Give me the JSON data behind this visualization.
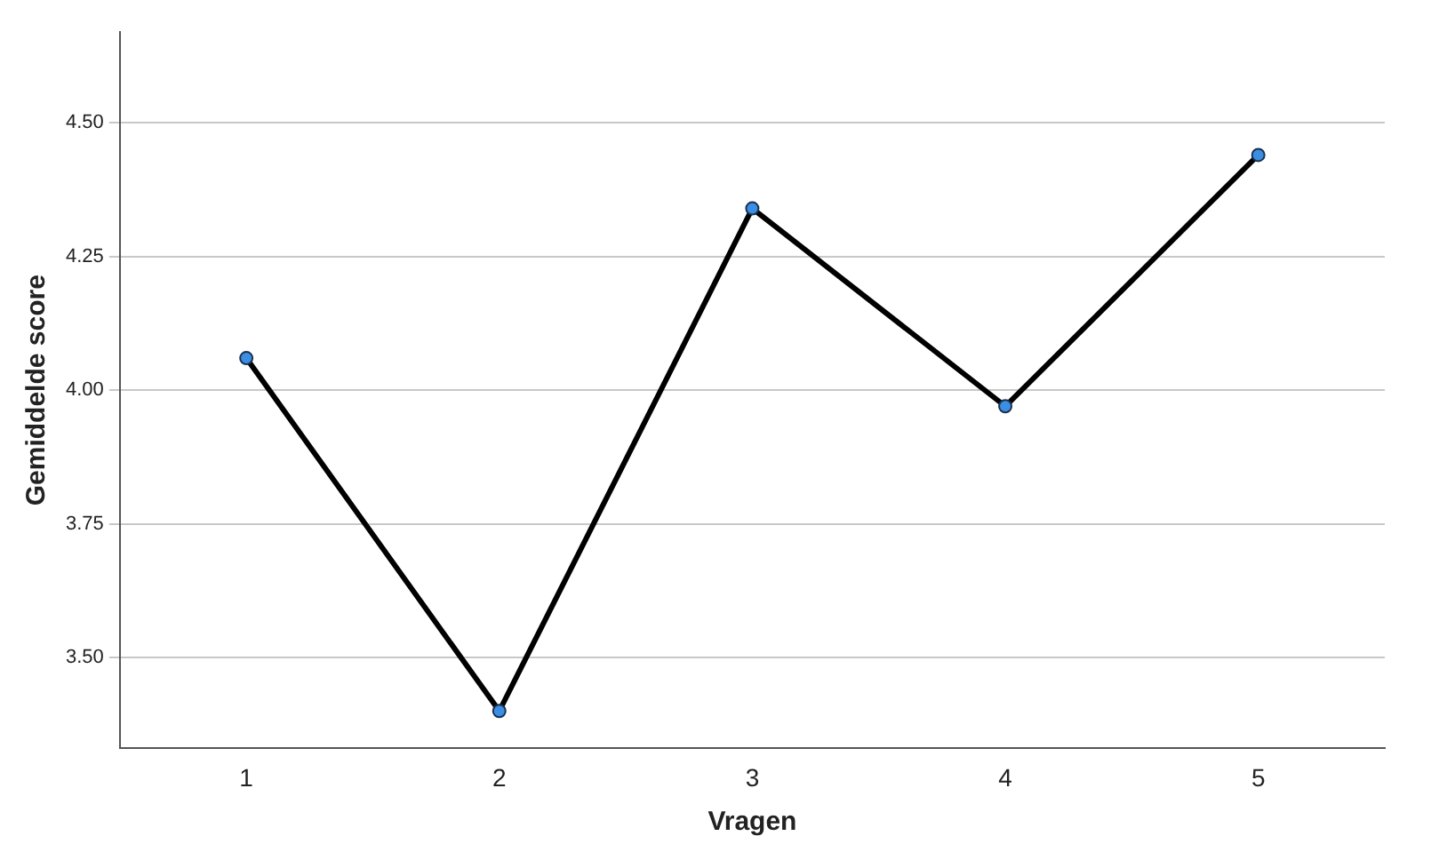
{
  "chart_data": {
    "type": "line",
    "xlabel": "Vragen",
    "ylabel": "Gemiddelde score",
    "categories": [
      "1",
      "2",
      "3",
      "4",
      "5"
    ],
    "series": [
      {
        "color": "#000000",
        "values": [
          4.06,
          3.4,
          4.34,
          3.97,
          4.44
        ]
      }
    ],
    "ylim": [
      3.33,
      4.67
    ],
    "yticks": [
      {
        "value": 3.5,
        "label": "3.50"
      },
      {
        "value": 3.75,
        "label": "3.75"
      },
      {
        "value": 4,
        "label": "4.00"
      },
      {
        "value": 4.25,
        "label": "4.25"
      },
      {
        "value": 4.5,
        "label": "4.50"
      }
    ],
    "grid": "y",
    "legend": false,
    "marker": "circle",
    "line_style": "solid"
  }
}
